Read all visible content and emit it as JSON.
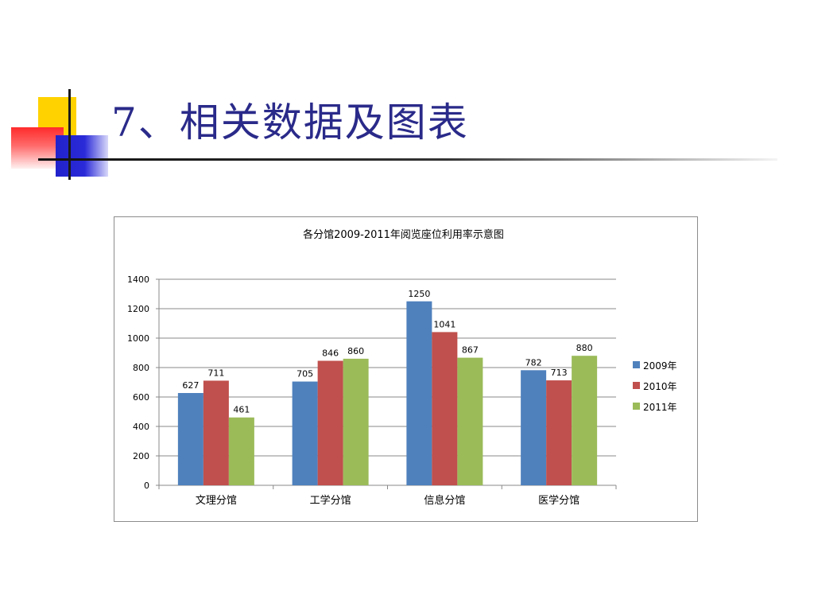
{
  "slide": {
    "title": "7、相关数据及图表"
  },
  "chart_data": {
    "type": "bar",
    "title": "各分馆2009-2011年阅览座位利用率示意图",
    "categories": [
      "文理分馆",
      "工学分馆",
      "信息分馆",
      "医学分馆"
    ],
    "series": [
      {
        "name": "2009年",
        "values": [
          627,
          705,
          1250,
          782
        ],
        "color": "#4f81bd"
      },
      {
        "name": "2010年",
        "values": [
          711,
          846,
          1041,
          713
        ],
        "color": "#c0504d"
      },
      {
        "name": "2011年",
        "values": [
          461,
          860,
          867,
          880
        ],
        "color": "#9bbb59"
      }
    ],
    "ylim": [
      0,
      1400
    ],
    "yticks": [
      0,
      200,
      400,
      600,
      800,
      1000,
      1200,
      1400
    ],
    "grid": true,
    "legend": "right"
  }
}
